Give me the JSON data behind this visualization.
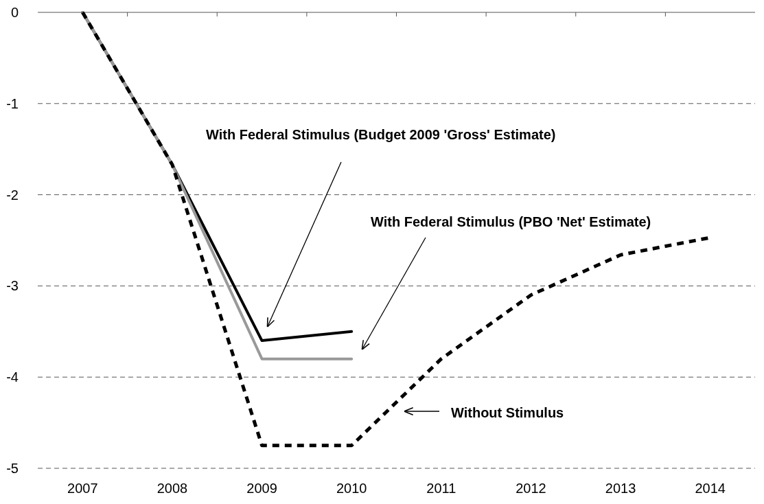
{
  "chart_data": {
    "type": "line",
    "categories": [
      "2007",
      "2008",
      "2009",
      "2010",
      "2011",
      "2012",
      "2013",
      "2014"
    ],
    "series": [
      {
        "color": "#000000",
        "line_style": "solid",
        "values": [
          0,
          -1.67,
          -3.6,
          -3.5,
          null,
          null,
          null,
          null
        ]
      },
      {
        "color": "#999999",
        "line_style": "solid",
        "values": [
          0,
          -1.67,
          -3.8,
          -3.8,
          null,
          null,
          null,
          null
        ]
      },
      {
        "color": "#000000",
        "line_style": "dashed",
        "values": [
          0,
          -1.67,
          -4.75,
          -4.75,
          -3.8,
          -3.1,
          -2.66,
          -2.47
        ]
      }
    ],
    "annotations": [
      "With Federal Stimulus (Budget 2009 'Gross' Estimate)",
      "With Federal Stimulus (PBO 'Net' Estimate)",
      "Without Stimulus"
    ],
    "ylim": [
      -5,
      0
    ],
    "yticks": [
      0,
      -1,
      -2,
      -3,
      -4,
      -5
    ],
    "grid": "y",
    "marker": "none"
  }
}
